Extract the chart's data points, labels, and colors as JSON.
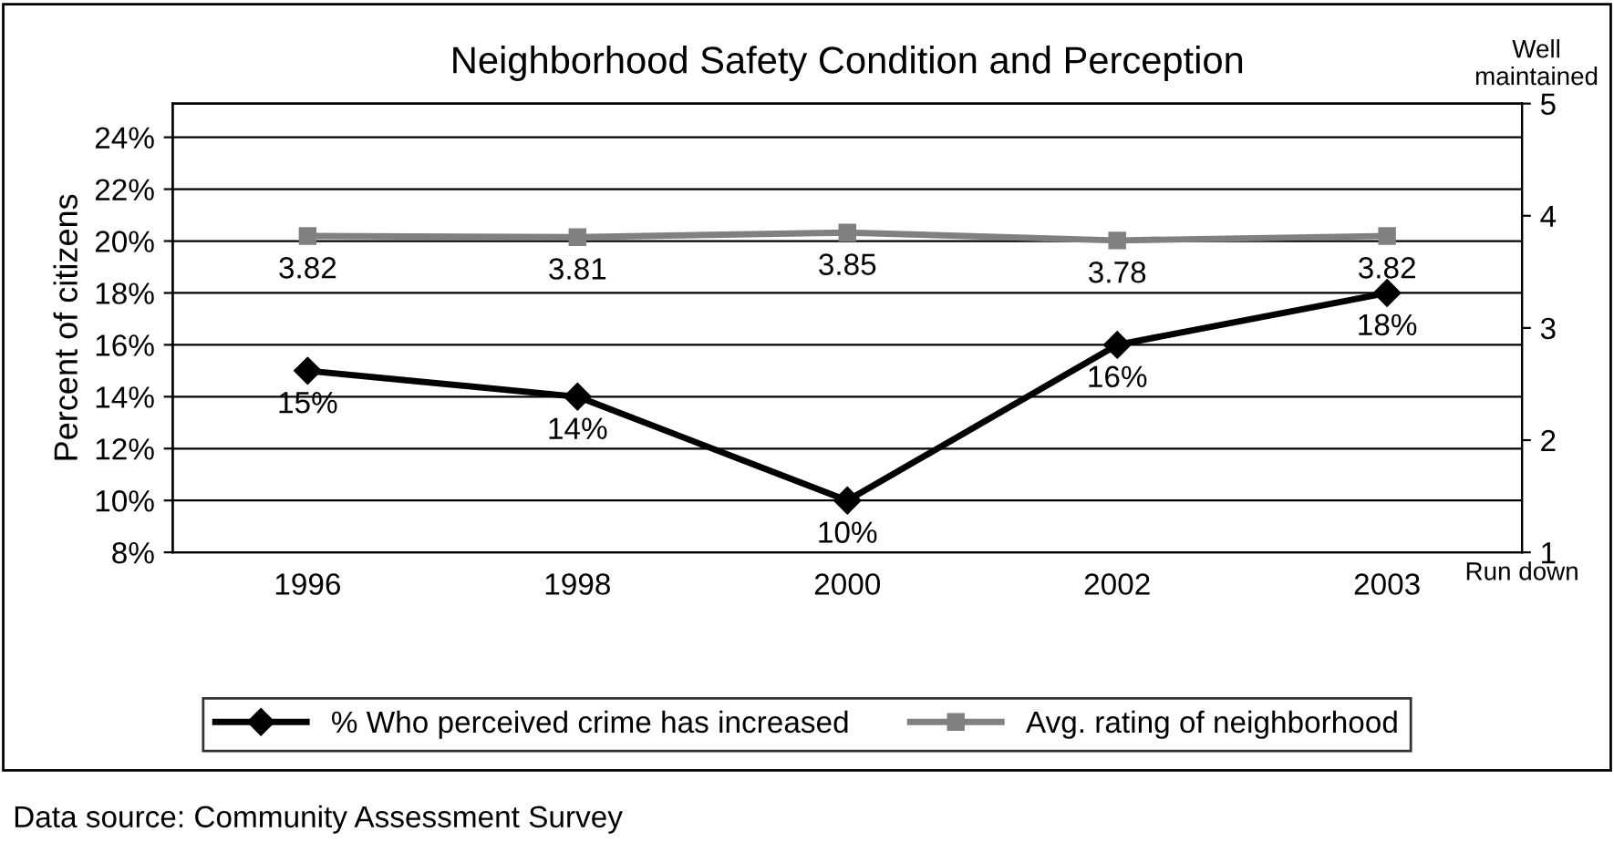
{
  "chart_data": {
    "type": "line",
    "title": "Neighborhood Safety Condition and Perception",
    "ylabel": "Percent of citizens",
    "categories": [
      "1996",
      "1998",
      "2000",
      "2002",
      "2003"
    ],
    "series": [
      {
        "name": "% Who perceived crime has increased",
        "color": "#000000",
        "marker": "diamond",
        "values": [
          15,
          14,
          10,
          16,
          18
        ],
        "value_labels": [
          "15%",
          "14%",
          "10%",
          "16%",
          "18%"
        ]
      },
      {
        "name": "Avg. rating of neighborhood",
        "color": "#808080",
        "marker": "square",
        "axis": "y2",
        "values": [
          3.82,
          3.81,
          3.85,
          3.78,
          3.82
        ],
        "value_labels": [
          "3.82",
          "3.81",
          "3.85",
          "3.78",
          "3.82"
        ]
      }
    ],
    "ylim": [
      8,
      25.3
    ],
    "yticks": [
      {
        "value": 8,
        "label": "8%"
      },
      {
        "value": 10,
        "label": "10%"
      },
      {
        "value": 12,
        "label": "12%"
      },
      {
        "value": 14,
        "label": "14%"
      },
      {
        "value": 16,
        "label": "16%"
      },
      {
        "value": 18,
        "label": "18%"
      },
      {
        "value": 20,
        "label": "20%"
      },
      {
        "value": 22,
        "label": "22%"
      },
      {
        "value": 24,
        "label": "24%"
      }
    ],
    "y2lim": [
      1,
      5
    ],
    "y2ticks": [
      1,
      2,
      3,
      4,
      5
    ],
    "grid": "y",
    "legend": "bottom",
    "line_style": "solid",
    "annotations": [
      "Well\nmaintained",
      "Run down",
      "Data source: Community Assessment Survey"
    ]
  }
}
